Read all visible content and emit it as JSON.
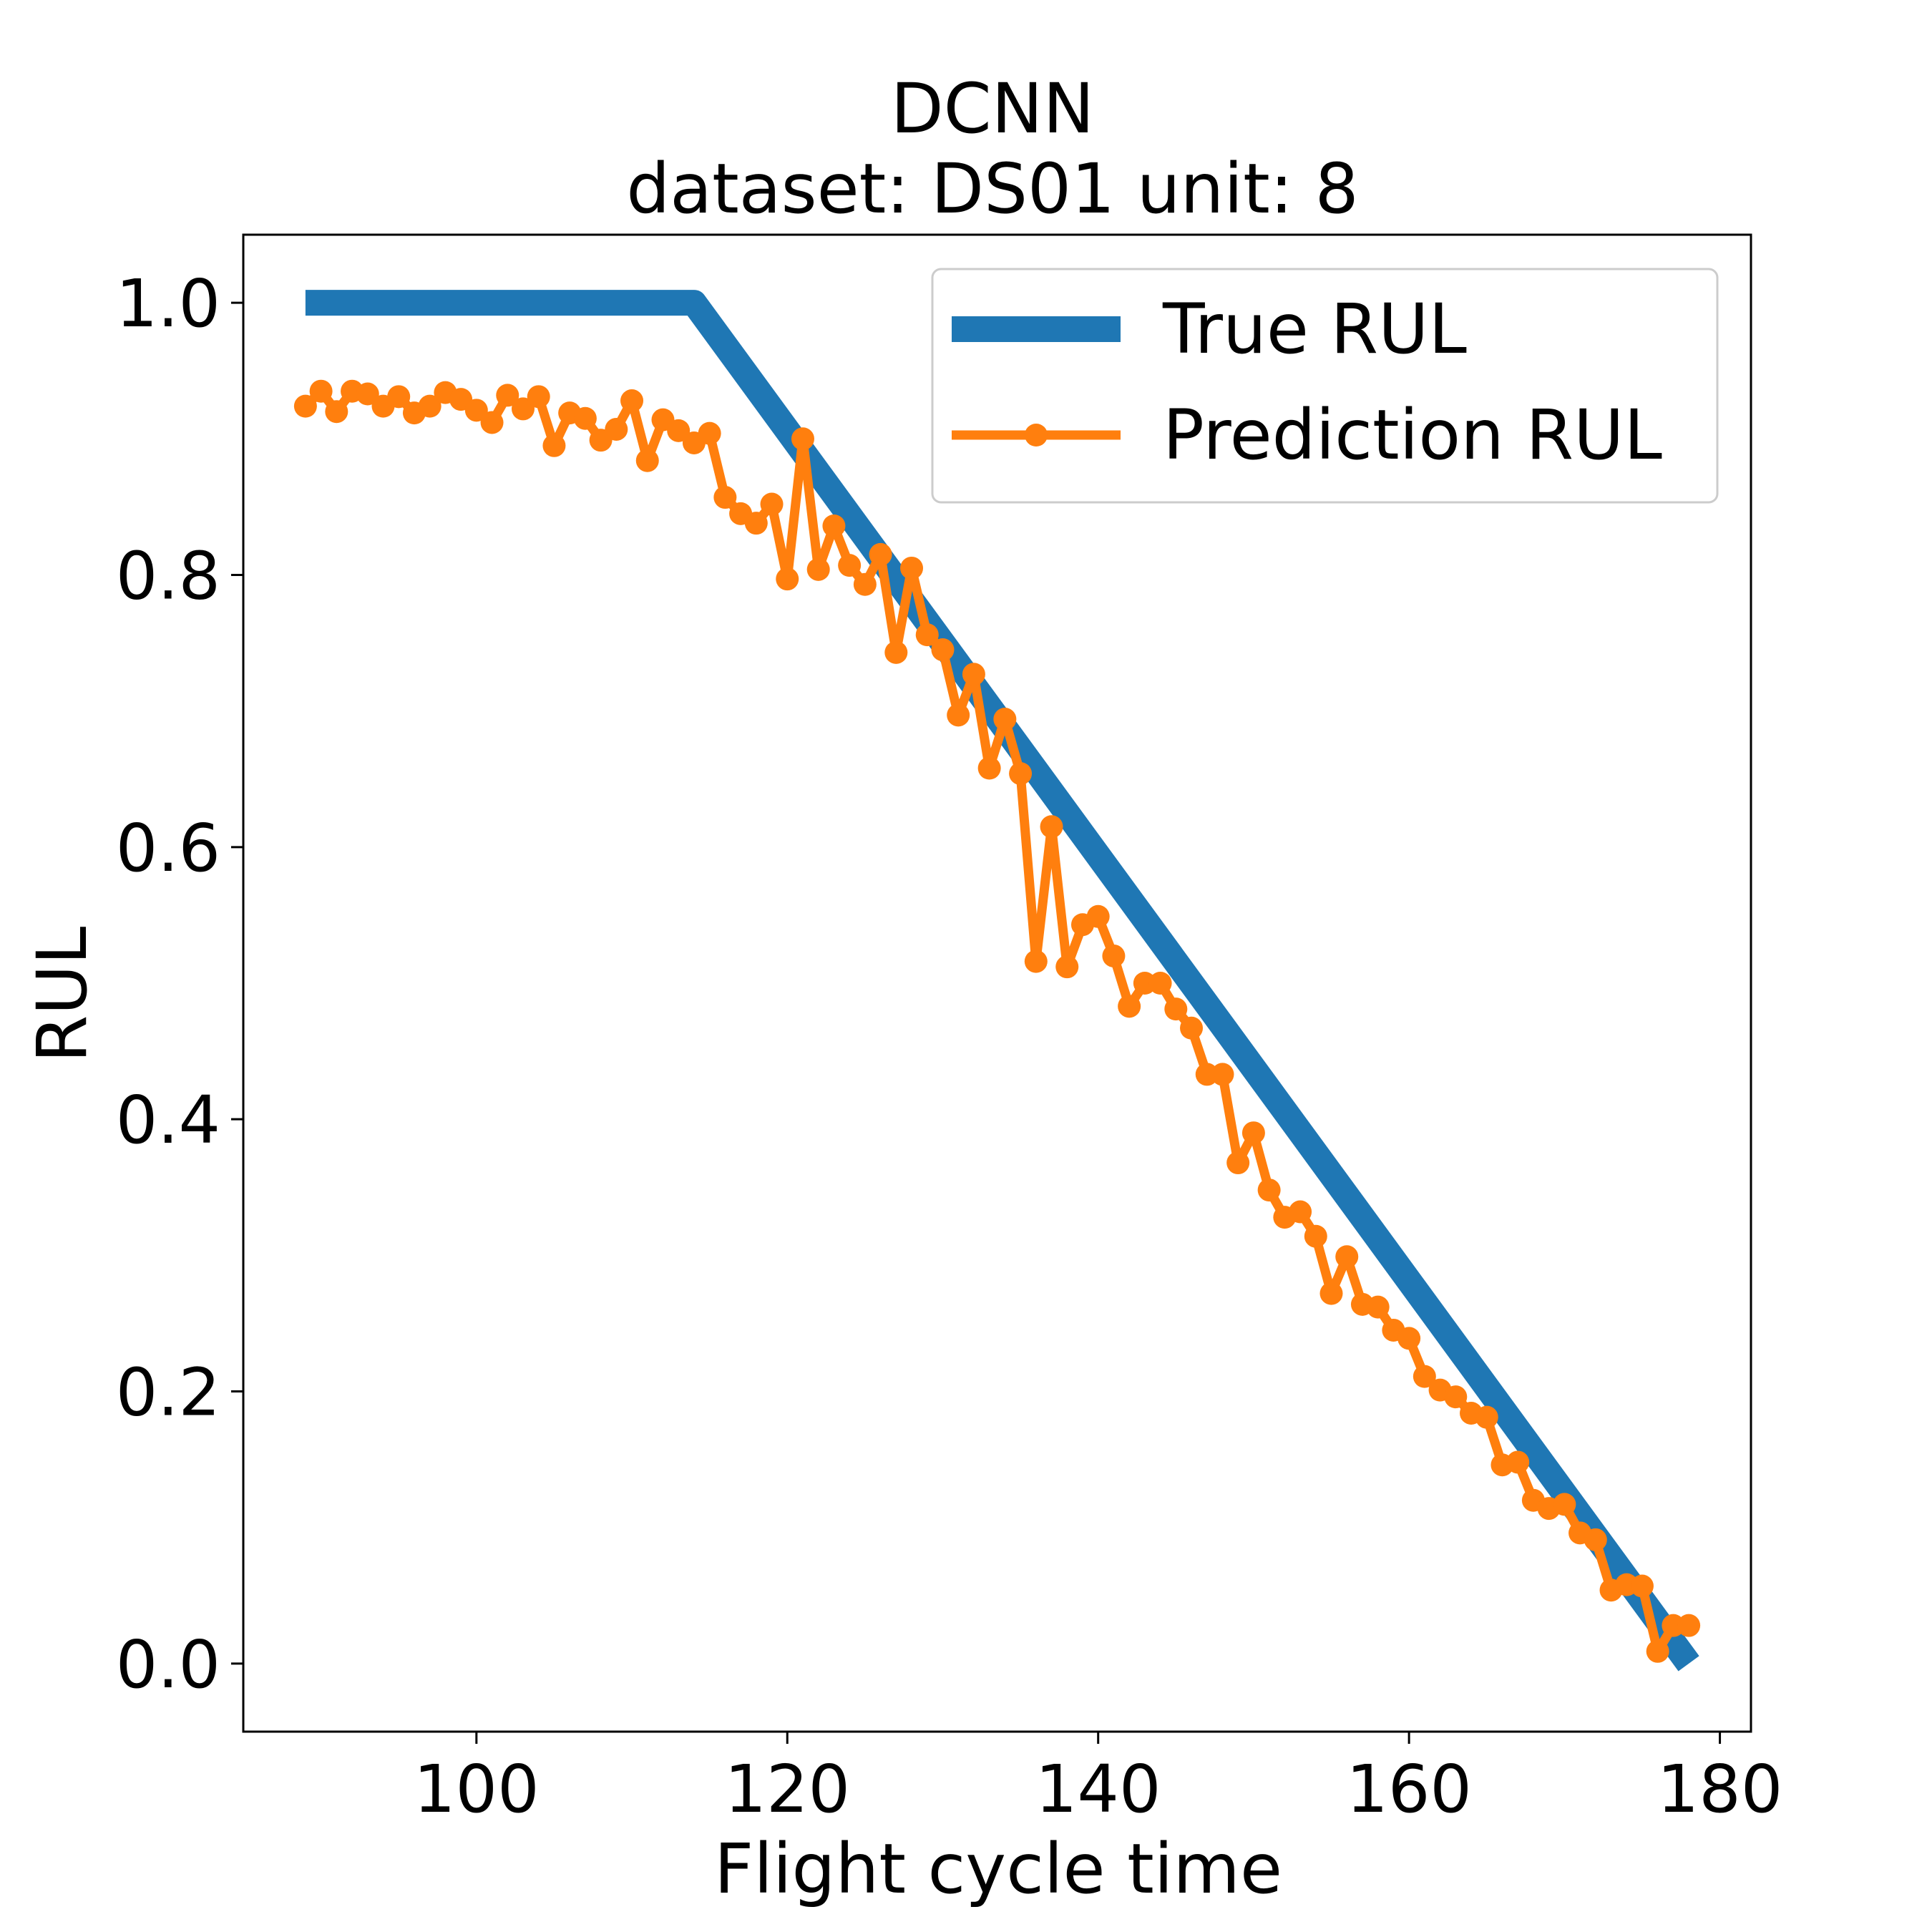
{
  "chart_data": {
    "type": "line",
    "title": "DCNN",
    "subtitle": "dataset: DS01 unit: 8",
    "xlabel": "Flight cycle time",
    "ylabel": "RUL",
    "xlim": [
      85,
      182
    ],
    "ylim": [
      -0.05,
      1.05
    ],
    "xticks": [
      100,
      120,
      140,
      160,
      180
    ],
    "yticks": [
      0.0,
      0.2,
      0.4,
      0.6,
      0.8,
      1.0
    ],
    "xtick_labels": [
      "100",
      "120",
      "140",
      "160",
      "180"
    ],
    "ytick_labels": [
      "0.0",
      "0.2",
      "0.4",
      "0.6",
      "0.8",
      "1.0"
    ],
    "grid": false,
    "legend_position": "top-right",
    "colors": {
      "true": "#1f77b4",
      "pred": "#ff7f0e"
    },
    "series": [
      {
        "name": "True RUL",
        "style": "thick-line",
        "x": [
          89,
          114,
          178
        ],
        "y": [
          1.0,
          1.0,
          0.0
        ]
      },
      {
        "name": "Prediction RUL",
        "style": "line-markers",
        "x": [
          89,
          90,
          91,
          92,
          93,
          94,
          95,
          96,
          97,
          98,
          99,
          100,
          101,
          102,
          103,
          104,
          105,
          106,
          107,
          108,
          109,
          110,
          111,
          112,
          113,
          114,
          115,
          116,
          117,
          118,
          119,
          120,
          121,
          122,
          123,
          124,
          125,
          126,
          127,
          128,
          129,
          130,
          131,
          132,
          133,
          134,
          135,
          136,
          137,
          138,
          139,
          140,
          141,
          142,
          143,
          144,
          145,
          146,
          147,
          148,
          149,
          150,
          151,
          152,
          153,
          154,
          155,
          156,
          157,
          158,
          159,
          160,
          161,
          162,
          163,
          164,
          165,
          166,
          167,
          168,
          169,
          170,
          171,
          172,
          173,
          174,
          175,
          176,
          177,
          178
        ],
        "y": [
          0.924,
          0.935,
          0.92,
          0.935,
          0.933,
          0.924,
          0.931,
          0.919,
          0.924,
          0.934,
          0.929,
          0.921,
          0.912,
          0.932,
          0.922,
          0.931,
          0.895,
          0.919,
          0.915,
          0.899,
          0.907,
          0.928,
          0.884,
          0.914,
          0.906,
          0.897,
          0.904,
          0.857,
          0.845,
          0.838,
          0.852,
          0.797,
          0.9,
          0.804,
          0.836,
          0.807,
          0.793,
          0.815,
          0.743,
          0.805,
          0.756,
          0.745,
          0.697,
          0.727,
          0.658,
          0.694,
          0.654,
          0.516,
          0.615,
          0.512,
          0.543,
          0.549,
          0.52,
          0.483,
          0.5,
          0.5,
          0.481,
          0.467,
          0.433,
          0.433,
          0.368,
          0.39,
          0.348,
          0.328,
          0.332,
          0.314,
          0.272,
          0.299,
          0.264,
          0.262,
          0.245,
          0.239,
          0.211,
          0.201,
          0.196,
          0.184,
          0.181,
          0.146,
          0.148,
          0.12,
          0.114,
          0.117,
          0.096,
          0.091,
          0.054,
          0.058,
          0.057,
          0.009,
          0.028,
          0.028
        ]
      }
    ]
  }
}
